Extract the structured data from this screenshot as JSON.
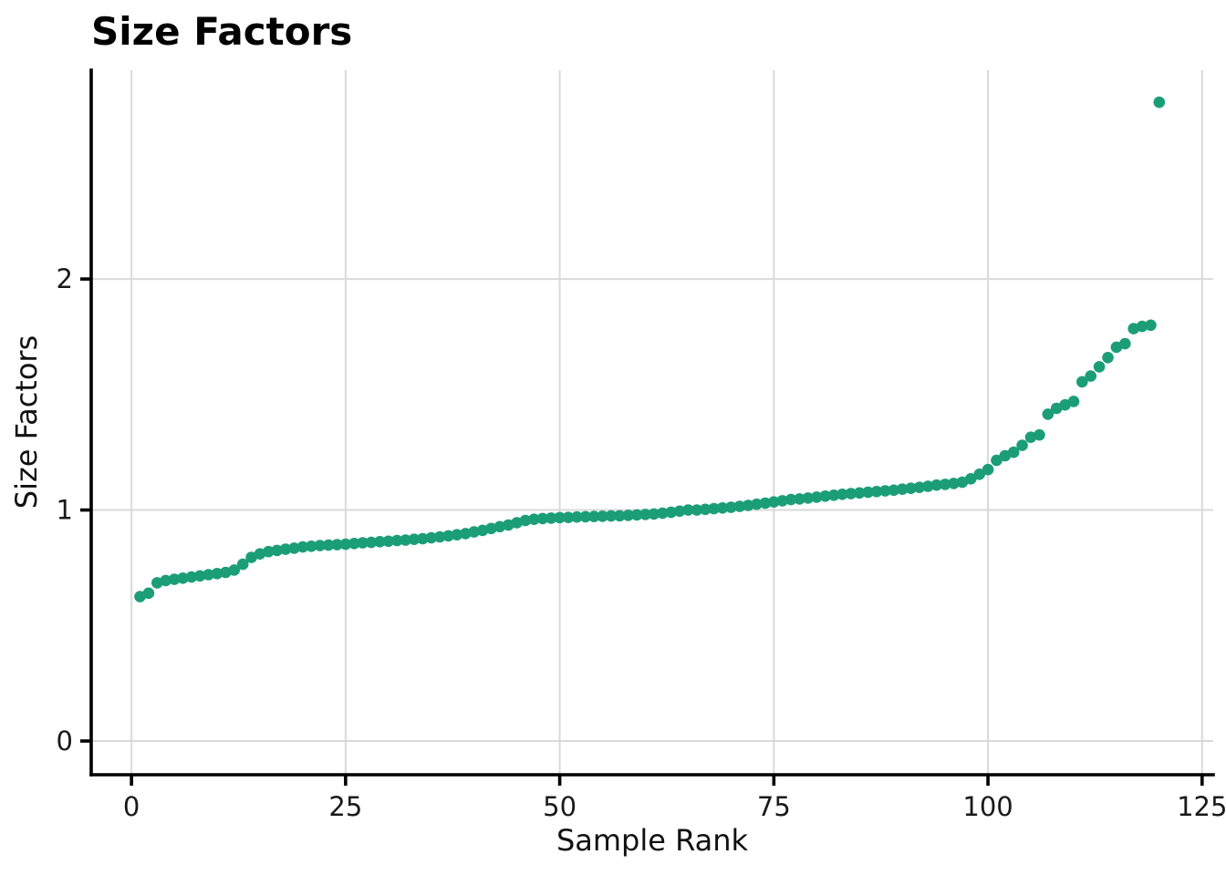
{
  "chart_data": {
    "type": "scatter",
    "title": "Size Factors",
    "xlabel": "Sample Rank",
    "ylabel": "Size Factors",
    "x_ticks": [
      0,
      25,
      50,
      75,
      100,
      125
    ],
    "y_ticks": [
      0,
      1,
      2
    ],
    "xlim": [
      -4.7,
      126.3
    ],
    "ylim": [
      -0.146,
      2.904
    ],
    "grid": true,
    "legend_position": "none",
    "marker_color": "#1b9e77",
    "marker_radius": 6.3,
    "grid_color": "#d9d9d9",
    "axis_color": "#000000",
    "n_points": 120,
    "x": [
      1,
      2,
      3,
      4,
      5,
      6,
      7,
      8,
      9,
      10,
      11,
      12,
      13,
      14,
      15,
      16,
      17,
      18,
      19,
      20,
      21,
      22,
      23,
      24,
      25,
      26,
      27,
      28,
      29,
      30,
      31,
      32,
      33,
      34,
      35,
      36,
      37,
      38,
      39,
      40,
      41,
      42,
      43,
      44,
      45,
      46,
      47,
      48,
      49,
      50,
      51,
      52,
      53,
      54,
      55,
      56,
      57,
      58,
      59,
      60,
      61,
      62,
      63,
      64,
      65,
      66,
      67,
      68,
      69,
      70,
      71,
      72,
      73,
      74,
      75,
      76,
      77,
      78,
      79,
      80,
      81,
      82,
      83,
      84,
      85,
      86,
      87,
      88,
      89,
      90,
      91,
      92,
      93,
      94,
      95,
      96,
      97,
      98,
      99,
      100,
      101,
      102,
      103,
      104,
      105,
      106,
      107,
      108,
      109,
      110,
      111,
      112,
      113,
      114,
      115,
      116,
      117,
      118,
      119,
      120
    ],
    "y": [
      0.625,
      0.64,
      0.685,
      0.695,
      0.7,
      0.705,
      0.71,
      0.715,
      0.72,
      0.725,
      0.73,
      0.74,
      0.765,
      0.795,
      0.81,
      0.82,
      0.825,
      0.83,
      0.835,
      0.84,
      0.843,
      0.846,
      0.848,
      0.85,
      0.852,
      0.855,
      0.858,
      0.86,
      0.863,
      0.865,
      0.868,
      0.87,
      0.873,
      0.876,
      0.88,
      0.884,
      0.888,
      0.893,
      0.898,
      0.905,
      0.912,
      0.92,
      0.928,
      0.935,
      0.945,
      0.955,
      0.96,
      0.963,
      0.965,
      0.967,
      0.968,
      0.97,
      0.971,
      0.972,
      0.973,
      0.974,
      0.975,
      0.977,
      0.979,
      0.981,
      0.983,
      0.986,
      0.99,
      0.995,
      1.0,
      1.0,
      1.003,
      1.006,
      1.009,
      1.012,
      1.016,
      1.02,
      1.025,
      1.03,
      1.035,
      1.04,
      1.045,
      1.048,
      1.052,
      1.056,
      1.06,
      1.064,
      1.068,
      1.071,
      1.074,
      1.077,
      1.08,
      1.083,
      1.086,
      1.09,
      1.094,
      1.098,
      1.103,
      1.108,
      1.111,
      1.115,
      1.12,
      1.135,
      1.155,
      1.175,
      1.215,
      1.235,
      1.25,
      1.28,
      1.315,
      1.325,
      1.415,
      1.44,
      1.455,
      1.47,
      1.555,
      1.58,
      1.62,
      1.66,
      1.705,
      1.72,
      1.785,
      1.795,
      1.8,
      2.765
    ]
  }
}
